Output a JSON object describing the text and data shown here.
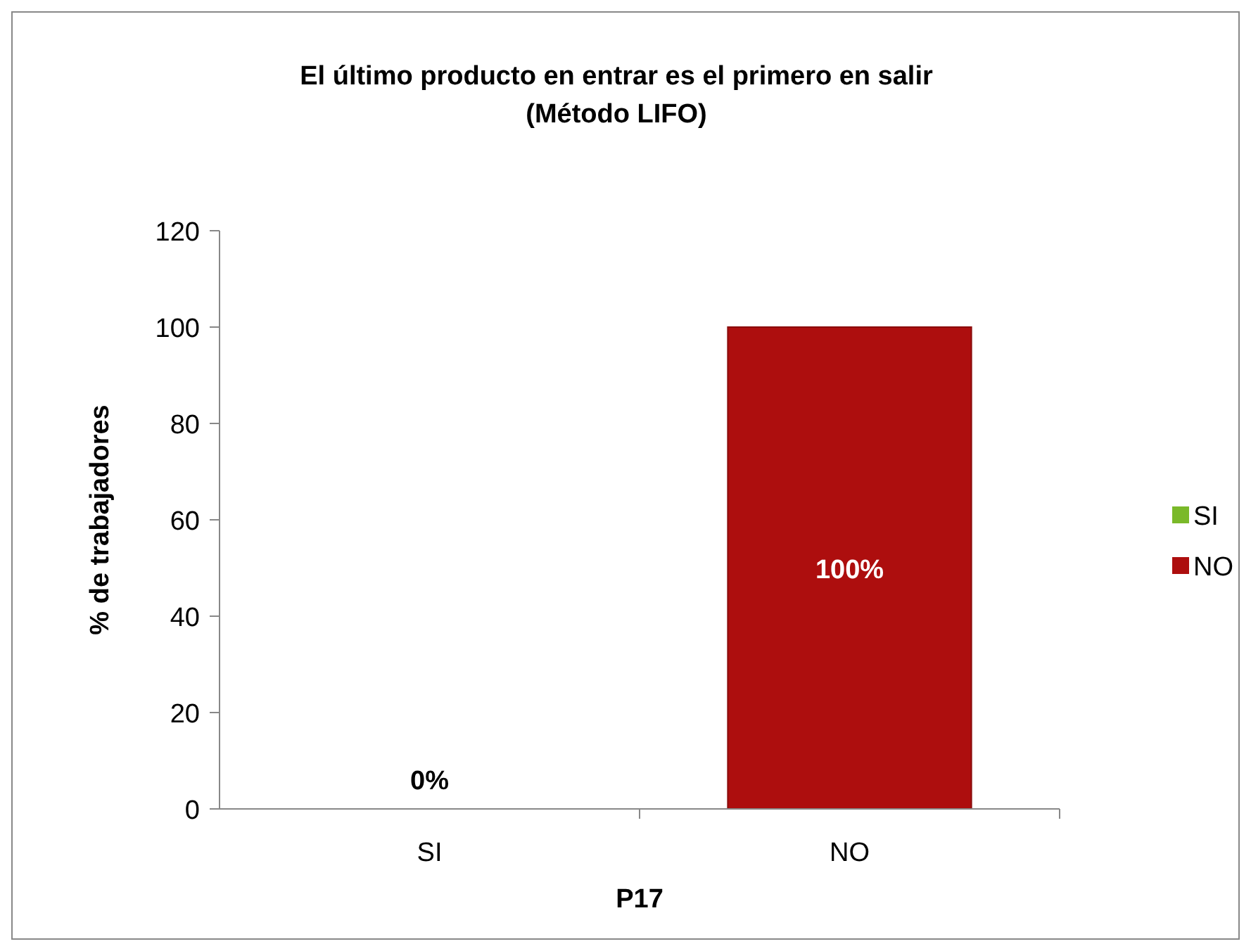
{
  "chart_data": {
    "type": "bar",
    "title": "El último producto en entrar es el primero en salir\n(Método LIFO)",
    "xlabel": "P17",
    "ylabel": "% de trabajadores",
    "categories": [
      "SI",
      "NO"
    ],
    "series": [
      {
        "name": "SI",
        "color": "#7ab929",
        "values": [
          0,
          null
        ],
        "value_labels": [
          "0%",
          null
        ]
      },
      {
        "name": "NO",
        "color": "#ad0e0e",
        "values": [
          null,
          100
        ],
        "value_labels": [
          null,
          "100%"
        ]
      }
    ],
    "ylim": [
      0,
      120
    ],
    "yticks": [
      0,
      20,
      40,
      60,
      80,
      100,
      120
    ],
    "grid": false,
    "legend": "right"
  }
}
